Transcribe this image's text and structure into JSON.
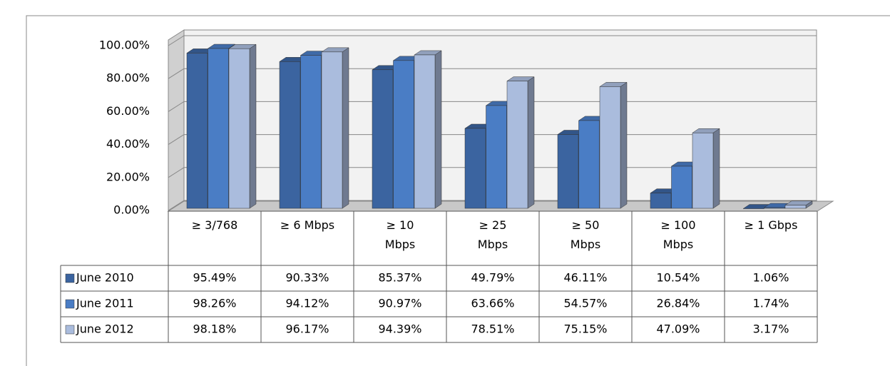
{
  "chart_data": {
    "type": "bar3d",
    "categories": [
      "≥ 3/768",
      "≥ 6 Mbps",
      "≥ 10 Mbps",
      "≥ 25 Mbps",
      "≥ 50 Mbps",
      "≥ 100 Mbps",
      "≥ 1 Gbps"
    ],
    "series": [
      {
        "name": "June 2010",
        "color": "#3b64a0",
        "values": [
          95.49,
          90.33,
          85.37,
          49.79,
          46.11,
          10.54,
          1.06
        ],
        "value_labels": [
          "95.49%",
          "90.33%",
          "85.37%",
          "49.79%",
          "46.11%",
          "10.54%",
          "1.06%"
        ]
      },
      {
        "name": "June 2011",
        "color": "#4a7dc5",
        "values": [
          98.26,
          94.12,
          90.97,
          63.66,
          54.57,
          26.84,
          1.74
        ],
        "value_labels": [
          "98.26%",
          "94.12%",
          "90.97%",
          "63.66%",
          "54.57%",
          "26.84%",
          "1.74%"
        ]
      },
      {
        "name": "June 2012",
        "color": "#aabcdd",
        "values": [
          98.18,
          96.17,
          94.39,
          78.51,
          75.15,
          47.09,
          3.17
        ],
        "value_labels": [
          "98.18%",
          "96.17%",
          "94.39%",
          "78.51%",
          "75.15%",
          "47.09%",
          "3.17%"
        ]
      }
    ],
    "ylim": [
      0,
      100
    ],
    "yticks": [
      {
        "value": 0,
        "label": "0.00%"
      },
      {
        "value": 20,
        "label": "20.00%"
      },
      {
        "value": 40,
        "label": "40.00%"
      },
      {
        "value": 60,
        "label": "60.00%"
      },
      {
        "value": 80,
        "label": "80.00%"
      },
      {
        "value": 100,
        "label": "100.00%"
      }
    ],
    "grid": true
  }
}
